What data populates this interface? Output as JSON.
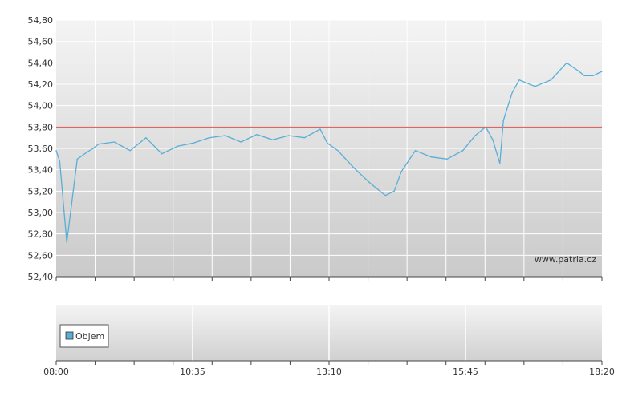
{
  "chart_data": [
    {
      "type": "line",
      "title": "",
      "ylim": [
        52.4,
        54.8
      ],
      "xlim": [
        "08:00",
        "18:20"
      ],
      "y_ticks": [
        "54,80",
        "54,60",
        "54,40",
        "54,20",
        "54,00",
        "53,80",
        "53,60",
        "53,40",
        "53,20",
        "53,00",
        "52,80",
        "52,60",
        "52,40"
      ],
      "y_tick_values": [
        54.8,
        54.6,
        54.4,
        54.2,
        54.0,
        53.8,
        53.6,
        53.4,
        53.2,
        53.0,
        52.8,
        52.6,
        52.4
      ],
      "reference_line": {
        "value": 53.8,
        "color": "#d9534f"
      },
      "watermark": "www.patria.cz",
      "grid": true,
      "series": [
        {
          "color": "#5aaed6",
          "x": [
            "08:00",
            "08:04",
            "08:12",
            "08:24",
            "08:36",
            "08:42",
            "08:48",
            "09:06",
            "09:24",
            "09:42",
            "10:00",
            "10:18",
            "10:36",
            "10:54",
            "11:12",
            "11:30",
            "11:48",
            "12:06",
            "12:24",
            "12:42",
            "13:00",
            "13:08",
            "13:20",
            "13:38",
            "13:56",
            "14:05",
            "14:14",
            "14:24",
            "14:32",
            "14:48",
            "15:06",
            "15:24",
            "15:42",
            "15:56",
            "16:08",
            "16:16",
            "16:24",
            "16:28",
            "16:38",
            "16:46",
            "17:04",
            "17:22",
            "17:40",
            "17:54",
            "18:00",
            "18:10",
            "18:20"
          ],
          "y": [
            53.58,
            53.48,
            52.72,
            53.5,
            53.57,
            53.6,
            53.64,
            53.66,
            53.58,
            53.7,
            53.55,
            53.62,
            53.65,
            53.7,
            53.72,
            53.66,
            53.73,
            53.68,
            53.72,
            53.7,
            53.78,
            53.65,
            53.58,
            53.42,
            53.28,
            53.22,
            53.16,
            53.2,
            53.38,
            53.58,
            53.52,
            53.5,
            53.58,
            53.72,
            53.8,
            53.68,
            53.46,
            53.86,
            54.12,
            54.24,
            54.18,
            54.24,
            54.4,
            54.32,
            54.28,
            54.28,
            54.32
          ]
        }
      ]
    },
    {
      "type": "bar",
      "legend": [
        "Objem"
      ],
      "x_ticks": [
        "08:00",
        "10:35",
        "13:10",
        "15:45",
        "18:20"
      ],
      "values": []
    }
  ]
}
